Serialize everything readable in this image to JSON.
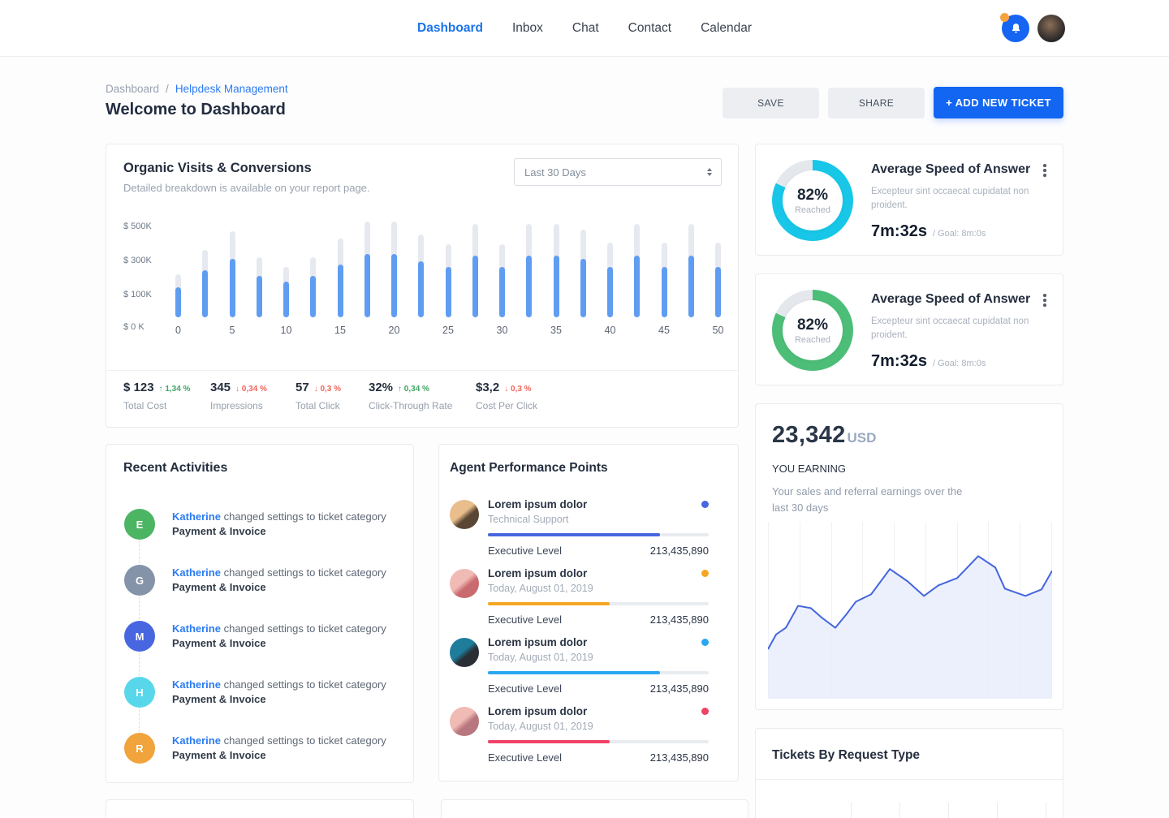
{
  "topbar": {
    "nav": [
      {
        "label": "Dashboard",
        "active": true
      },
      {
        "label": "Inbox",
        "active": false
      },
      {
        "label": "Chat",
        "active": false
      },
      {
        "label": "Contact",
        "active": false
      },
      {
        "label": "Calendar",
        "active": false
      }
    ],
    "notification_badge": true,
    "badge_color": "#F5A33C",
    "notification_button_color": "#1565F2"
  },
  "page": {
    "breadcrumb": {
      "root": "Dashboard",
      "separator": "/",
      "current": "Helpdesk Management"
    },
    "title": "Welcome to Dashboard",
    "actions": {
      "save": "SAVE",
      "share": "SHARE",
      "add_ticket": "+ ADD NEW TICKET"
    }
  },
  "organic": {
    "title": "Organic Visits & Conversions",
    "subtitle": "Detailed breakdown is available on your report page.",
    "range_select": "Last 30 Days",
    "stats": [
      {
        "value": "$ 123",
        "delta": "1,34 %",
        "direction": "up",
        "label": "Total Cost"
      },
      {
        "value": "345",
        "delta": "0,34 %",
        "direction": "down",
        "label": "Impressions"
      },
      {
        "value": "57",
        "delta": "0,3 %",
        "direction": "down",
        "label": "Total Click"
      },
      {
        "value": "32%",
        "delta": "0,34 %",
        "direction": "up",
        "label": "Click-Through Rate"
      },
      {
        "value": "$3,2",
        "delta": "0,3 %",
        "direction": "down",
        "label": "Cost Per Click"
      }
    ],
    "delta_colors": {
      "up": "#3FA463",
      "down": "#F0655C"
    }
  },
  "chart_data": [
    {
      "type": "bar",
      "title": "Organic Visits & Conversions",
      "x": [
        0,
        2.5,
        5,
        7.5,
        10,
        12.5,
        15,
        17.5,
        20,
        22.5,
        25,
        27.5,
        30,
        32.5,
        35,
        37.5,
        40,
        42.5,
        45,
        47.5,
        50
      ],
      "series": [
        {
          "name": "target-total",
          "values": [
            230,
            360,
            460,
            320,
            270,
            320,
            420,
            510,
            510,
            440,
            390,
            500,
            390,
            500,
            500,
            470,
            400,
            500,
            400,
            500,
            400
          ]
        },
        {
          "name": "organic-visits",
          "values": [
            160,
            250,
            310,
            220,
            190,
            220,
            280,
            340,
            340,
            300,
            270,
            330,
            270,
            330,
            330,
            310,
            270,
            330,
            270,
            330,
            270
          ]
        }
      ],
      "unit": "$K",
      "y_ticks": [
        "$ 500K",
        "$ 300K",
        "$ 100K",
        "$ 0 K"
      ],
      "x_tick_step": 5,
      "ylim": [
        0,
        520
      ],
      "grid": false,
      "legend": false,
      "colors": {
        "track": "#E6E9EF",
        "fill": "#5F9DF2"
      }
    },
    {
      "type": "area",
      "title": "You Earning — sales and referral earnings, last 30 days",
      "points": [
        [
          0,
          72
        ],
        [
          2.9,
          63.6
        ],
        [
          6.3,
          59.9
        ],
        [
          10.6,
          47.5
        ],
        [
          15.1,
          48.8
        ],
        [
          19.1,
          54.4
        ],
        [
          23.7,
          59.9
        ],
        [
          27.7,
          52.1
        ],
        [
          30.9,
          45.2
        ],
        [
          36.3,
          41
        ],
        [
          42.9,
          26.7
        ],
        [
          49.1,
          33.6
        ],
        [
          54.9,
          41.9
        ],
        [
          60,
          35.9
        ],
        [
          66.6,
          31.8
        ],
        [
          74,
          19.4
        ],
        [
          80,
          25.8
        ],
        [
          83.4,
          37.8
        ],
        [
          90.6,
          41.9
        ],
        [
          96.3,
          38.2
        ],
        [
          100,
          27.7
        ]
      ],
      "color": "#4365DD",
      "fill": "#E9EDFB",
      "grid": "vertical",
      "gridline_count": 10,
      "axis_labels": false
    }
  ],
  "recent": {
    "title": "Recent Activities",
    "items": [
      {
        "initial": "E",
        "color": "#4CB563",
        "user": "Katherine",
        "action": "changed settings to ticket category",
        "target": "Payment & Invoice"
      },
      {
        "initial": "G",
        "color": "#8493A8",
        "user": "Katherine",
        "action": "changed settings to ticket category",
        "target": "Payment & Invoice"
      },
      {
        "initial": "M",
        "color": "#4866E0",
        "user": "Katherine",
        "action": "changed settings to ticket category",
        "target": "Payment & Invoice"
      },
      {
        "initial": "H",
        "color": "#59D7EA",
        "user": "Katherine",
        "action": "changed settings to ticket category",
        "target": "Payment & Invoice"
      },
      {
        "initial": "R",
        "color": "#F1A33C",
        "user": "Katherine",
        "action": "changed settings to ticket category",
        "target": "Payment & Invoice"
      }
    ]
  },
  "agents": {
    "title": "Agent Performance Points",
    "level_label": "Executive Level",
    "items": [
      {
        "name": "Lorem ipsum dolor",
        "subtitle": "Technical Support",
        "status_color": "#4866E0",
        "progress": 78,
        "points": "213,435,890",
        "avatar_colors": [
          "#E9BE8C",
          "#5A4634"
        ]
      },
      {
        "name": "Lorem ipsum dolor",
        "subtitle": "Today, August 01, 2019",
        "status_color": "#F5A623",
        "progress": 55,
        "points": "213,435,890",
        "avatar_colors": [
          "#F0BBB5",
          "#C96A6F"
        ]
      },
      {
        "name": "Lorem ipsum dolor",
        "subtitle": "Today, August 01, 2019",
        "status_color": "#2BA7F2",
        "progress": 78,
        "points": "213,435,890",
        "avatar_colors": [
          "#1F7D9C",
          "#2A2E35"
        ]
      },
      {
        "name": "Lorem ipsum dolor",
        "subtitle": "Today, August 01, 2019",
        "status_color": "#EF4266",
        "progress": 55,
        "points": "213,435,890",
        "avatar_colors": [
          "#F0BBB5",
          "#B8777E"
        ]
      }
    ]
  },
  "speed_cards": [
    {
      "percent": "82%",
      "caption": "Reached",
      "title": "Average Speed of Answer",
      "description": "Excepteur sint occaecat cupidatat non proident.",
      "time": "7m:32s",
      "goal": "/ Goal: 8m:0s",
      "ring_color": "#18C7E8",
      "progress": 82
    },
    {
      "percent": "82%",
      "caption": "Reached",
      "title": "Average Speed of Answer",
      "description": "Excepteur sint occaecat cupidatat non proident.",
      "time": "7m:32s",
      "goal": "/ Goal: 8m:0s",
      "ring_color": "#4DBE78",
      "progress": 82
    }
  ],
  "earnings": {
    "amount": "23,342",
    "currency": "USD",
    "heading": "YOU EARNING",
    "description": "Your sales and referral earnings over the last 30 days"
  },
  "tickets": {
    "title": "Tickets By Request Type"
  }
}
